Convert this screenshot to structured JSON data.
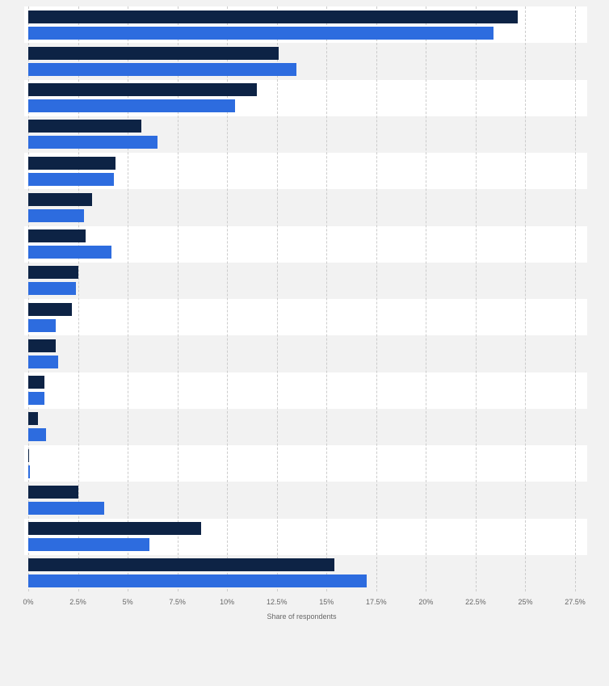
{
  "chart_data": {
    "type": "bar",
    "orientation": "horizontal",
    "title": "",
    "xlabel": "Share of respondents",
    "xlim": [
      0,
      27.5
    ],
    "x_ticks": [
      0,
      2.5,
      5,
      7.5,
      10,
      12.5,
      15,
      17.5,
      20,
      22.5,
      25,
      27.5
    ],
    "x_tick_labels": [
      "0%",
      "2.5%",
      "5%",
      "7.5%",
      "10%",
      "12.5%",
      "15%",
      "17.5%",
      "20%",
      "22.5%",
      "25%",
      "27.5%"
    ],
    "categories": [
      "",
      "",
      "",
      "",
      "",
      "",
      "",
      "",
      "",
      "",
      "",
      "",
      "",
      "",
      "",
      ""
    ],
    "series": [
      {
        "name": "dark-navy",
        "color": "#0d2345",
        "values": [
          24.6,
          12.6,
          11.5,
          5.7,
          4.4,
          3.2,
          2.9,
          2.5,
          2.2,
          1.4,
          0.8,
          0.5,
          0.05,
          2.5,
          8.7,
          15.4
        ]
      },
      {
        "name": "bright-blue",
        "color": "#2d6cdf",
        "values": [
          23.4,
          13.5,
          10.4,
          6.5,
          4.3,
          2.8,
          4.2,
          2.4,
          1.4,
          1.5,
          0.8,
          0.9,
          0.1,
          3.8,
          6.1,
          17.0
        ]
      }
    ],
    "grid": "vertical-dashed",
    "legend": "none",
    "row_stripes": true
  },
  "colors": {
    "page_background": "#f2f2f2",
    "stripe_light": "#ffffff",
    "stripe_dark": "#f2f2f2",
    "gridline": "#cccccc",
    "axis_text": "#666666"
  }
}
